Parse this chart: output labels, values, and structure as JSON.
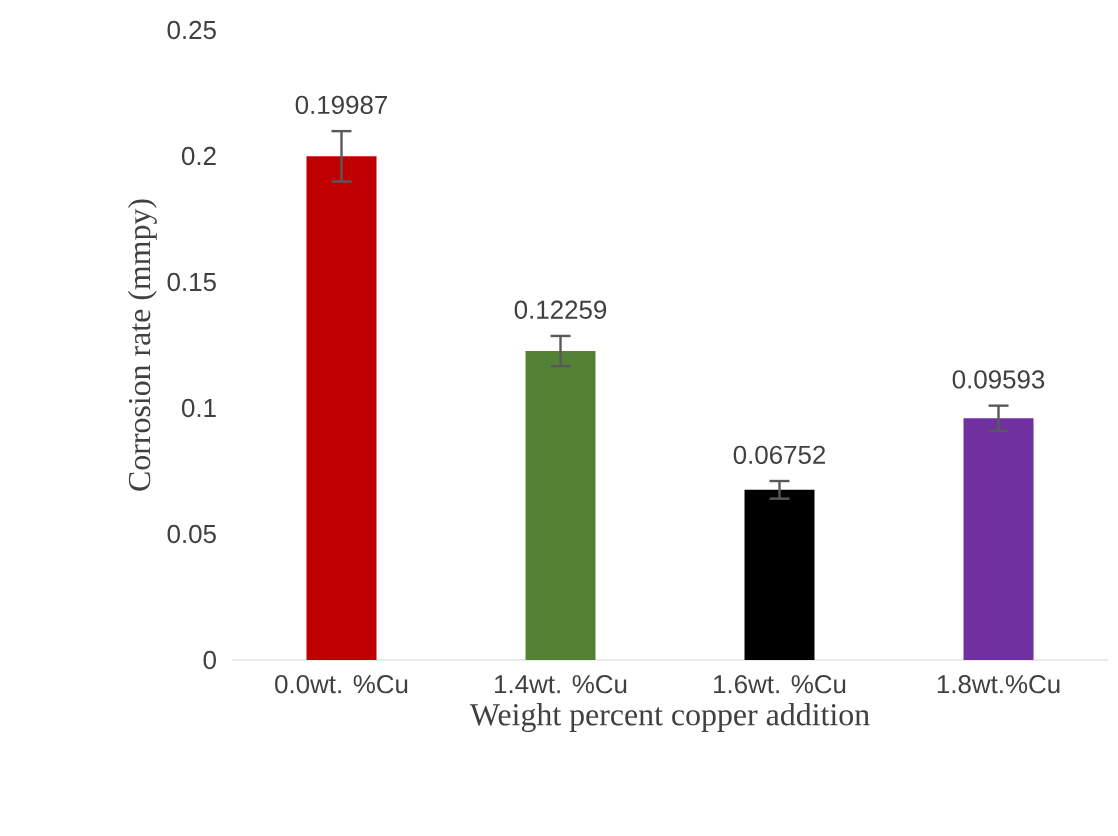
{
  "chart_data": {
    "type": "bar",
    "xlabel": "Weight percent copper addition",
    "ylabel": "Corrosion rate (mmpy)",
    "categories": [
      "0.0wt. %Cu",
      "1.4wt. %Cu",
      "1.6wt. %Cu",
      "1.8wt.%Cu"
    ],
    "values": [
      0.19987,
      0.12259,
      0.06752,
      0.09593
    ],
    "errors": [
      0.01,
      0.006,
      0.0035,
      0.005
    ],
    "colors": [
      "#c00000",
      "#548235",
      "#000000",
      "#7030a0"
    ],
    "data_labels": true,
    "ylim": [
      0,
      0.25
    ],
    "yticks": [
      0,
      0.05,
      0.1,
      0.15,
      0.2,
      0.25
    ]
  }
}
